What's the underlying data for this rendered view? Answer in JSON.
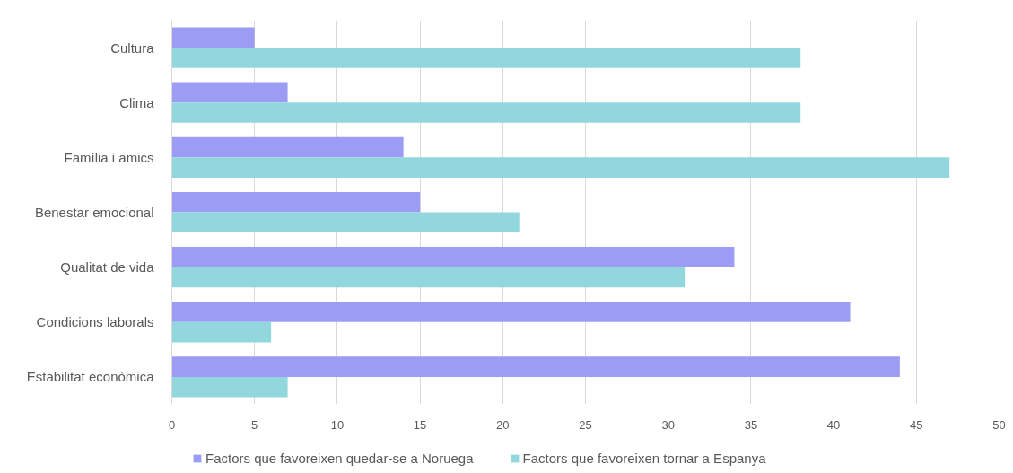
{
  "chart_data": {
    "type": "bar",
    "orientation": "horizontal",
    "categories": [
      "Cultura",
      "Clima",
      "Família i amics",
      "Benestar emocional",
      "Qualitat de vida",
      "Condicions laborals",
      "Estabilitat econòmica"
    ],
    "series": [
      {
        "name": "Factors que favoreixen quedar-se a Noruega",
        "color": "#9d9cf5",
        "values": [
          5,
          7,
          14,
          15,
          34,
          41,
          44
        ]
      },
      {
        "name": "Factors que favoreixen tornar a Espanya",
        "color": "#92d7dd",
        "values": [
          38,
          38,
          47,
          21,
          31,
          6,
          7
        ]
      }
    ],
    "xlim": [
      0,
      50
    ],
    "xticks": [
      0,
      5,
      10,
      15,
      20,
      25,
      30,
      35,
      40,
      45,
      50
    ],
    "grid": "x",
    "legend": "bottom"
  }
}
